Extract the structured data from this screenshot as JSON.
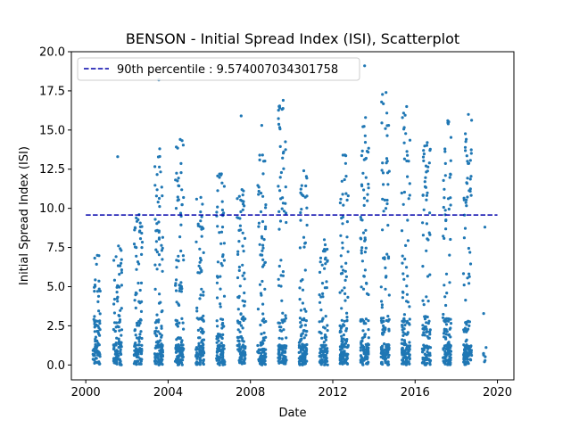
{
  "chart_data": {
    "type": "scatter",
    "title": "BENSON - Initial Spread Index (ISI), Scatterplot",
    "xlabel": "Date",
    "ylabel": "Initial Spread Index (ISI)",
    "xlim": [
      1999.3,
      2020.8
    ],
    "ylim": [
      -0.95,
      20.0
    ],
    "x_ticks": [
      2000,
      2004,
      2008,
      2012,
      2016,
      2020
    ],
    "y_ticks": [
      0.0,
      2.5,
      5.0,
      7.5,
      10.0,
      12.5,
      15.0,
      17.5,
      20.0
    ],
    "grid": false,
    "legend": {
      "placement": "top-left",
      "entries": [
        "90th percentile : 9.574007034301758"
      ]
    },
    "colors": {
      "points": "#1f77b4",
      "percentile_line": "#0000aa"
    },
    "percentile_line": {
      "y": 9.574007034301758,
      "x_start": 2000.0,
      "x_end": 2020.0
    },
    "season_clusters": [
      {
        "x_start": 2000.35,
        "x_end": 2000.7,
        "count": 90,
        "y_max": 7.0
      },
      {
        "x_start": 2001.35,
        "x_end": 2001.75,
        "count": 100,
        "y_max": 7.6,
        "outliers": [
          13.3
        ]
      },
      {
        "x_start": 2002.35,
        "x_end": 2002.75,
        "count": 110,
        "y_max": 9.6
      },
      {
        "x_start": 2003.35,
        "x_end": 2003.75,
        "count": 130,
        "y_max": 13.8,
        "outliers": [
          18.2
        ]
      },
      {
        "x_start": 2004.35,
        "x_end": 2004.75,
        "count": 130,
        "y_max": 14.4
      },
      {
        "x_start": 2005.35,
        "x_end": 2005.75,
        "count": 110,
        "y_max": 10.7
      },
      {
        "x_start": 2006.35,
        "x_end": 2006.75,
        "count": 110,
        "y_max": 12.2
      },
      {
        "x_start": 2007.35,
        "x_end": 2007.75,
        "count": 120,
        "y_max": 11.2,
        "outliers": [
          15.9
        ]
      },
      {
        "x_start": 2008.35,
        "x_end": 2008.75,
        "count": 110,
        "y_max": 13.4,
        "outliers": [
          15.3
        ]
      },
      {
        "x_start": 2009.35,
        "x_end": 2009.75,
        "count": 130,
        "y_max": 16.9
      },
      {
        "x_start": 2010.35,
        "x_end": 2010.75,
        "count": 120,
        "y_max": 12.4
      },
      {
        "x_start": 2011.35,
        "x_end": 2011.75,
        "count": 100,
        "y_max": 8.0
      },
      {
        "x_start": 2012.35,
        "x_end": 2012.75,
        "count": 130,
        "y_max": 13.4
      },
      {
        "x_start": 2013.35,
        "x_end": 2013.75,
        "count": 130,
        "y_max": 15.8,
        "outliers": [
          19.1
        ]
      },
      {
        "x_start": 2014.35,
        "x_end": 2014.75,
        "count": 130,
        "y_max": 17.4
      },
      {
        "x_start": 2015.35,
        "x_end": 2015.75,
        "count": 130,
        "y_max": 16.5
      },
      {
        "x_start": 2016.35,
        "x_end": 2016.75,
        "count": 120,
        "y_max": 14.2
      },
      {
        "x_start": 2017.35,
        "x_end": 2017.75,
        "count": 130,
        "y_max": 15.6
      },
      {
        "x_start": 2018.35,
        "x_end": 2018.75,
        "count": 130,
        "y_max": 16.0
      },
      {
        "x_start": 2019.3,
        "x_end": 2019.45,
        "count": 8,
        "y_max": 8.8
      }
    ]
  }
}
